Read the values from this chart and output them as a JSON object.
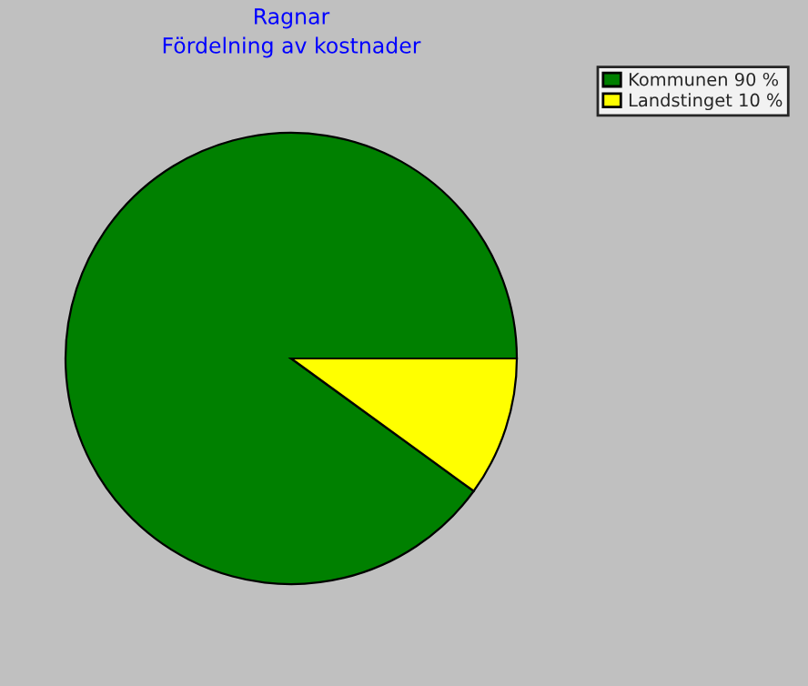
{
  "chart_data": {
    "type": "pie",
    "title": "Ragnar",
    "subtitle": "Fördelning av kostnader",
    "categories": [
      "Kommunen 90 %",
      "Landstinget 10 %"
    ],
    "values": [
      90,
      10
    ],
    "colors": [
      "#008000",
      "#ffff00"
    ],
    "legend": "top right"
  }
}
